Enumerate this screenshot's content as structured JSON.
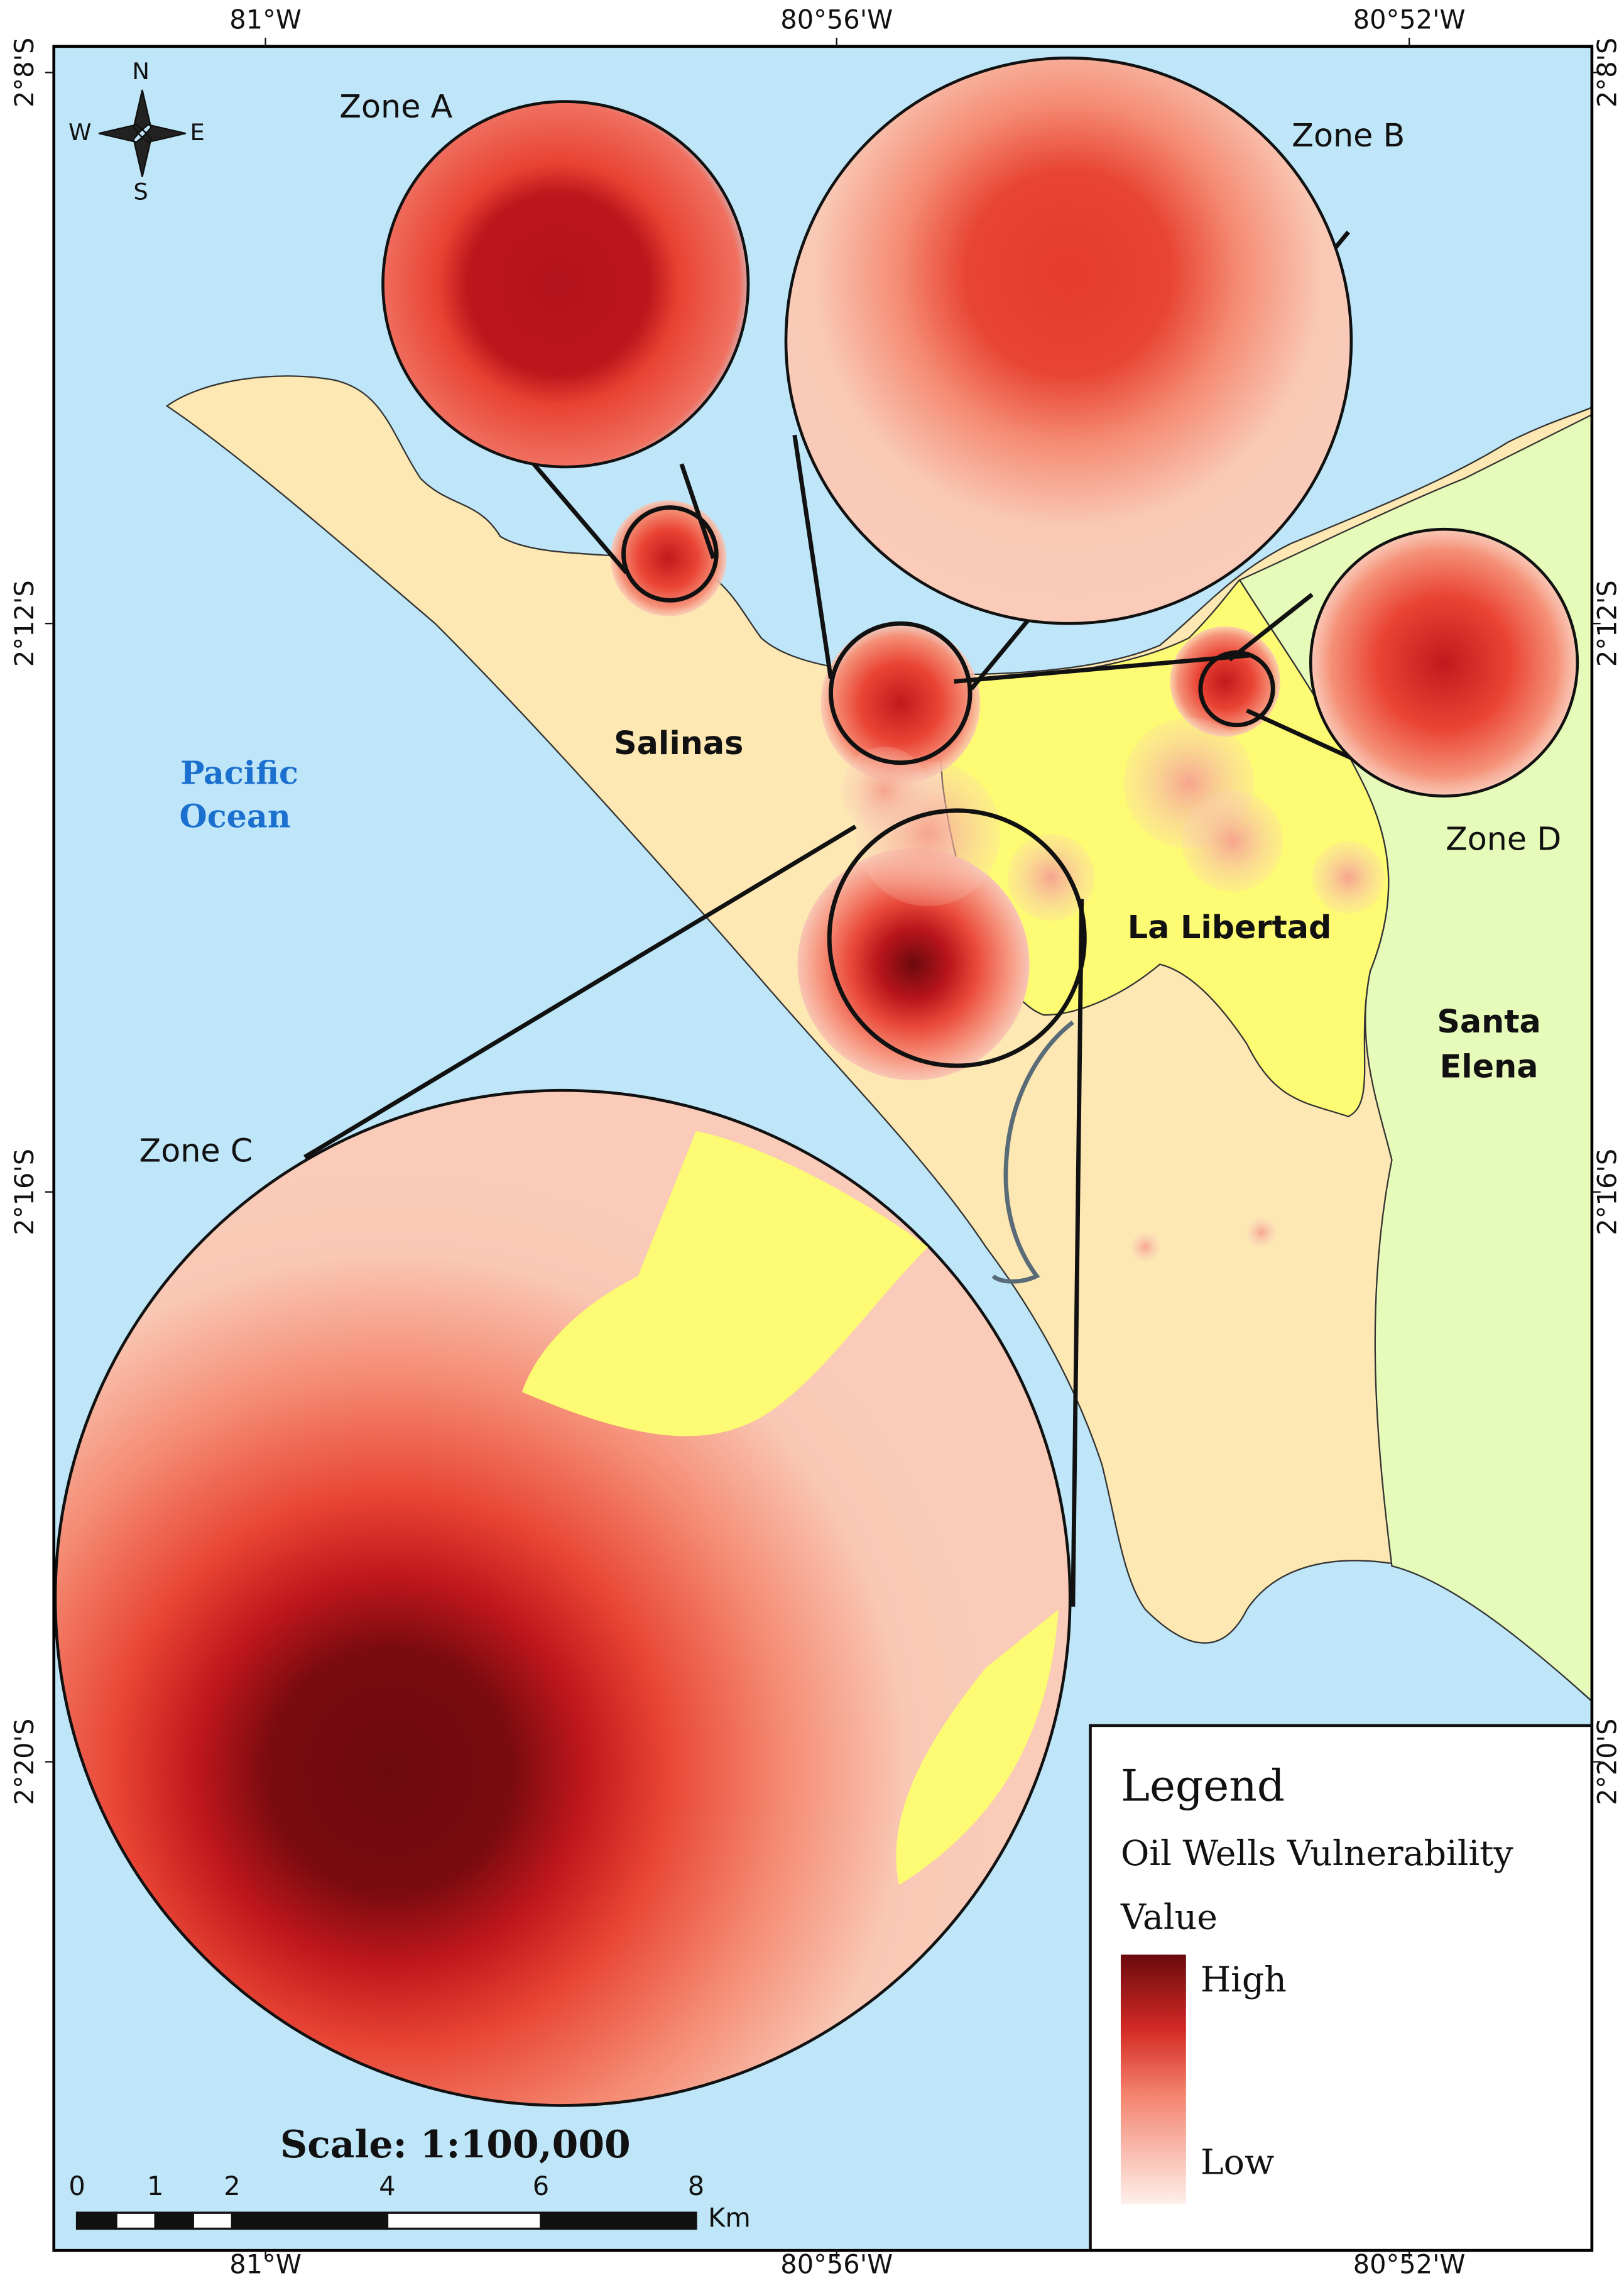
{
  "map": {
    "longitudes": [
      "81°W",
      "80°56'W",
      "80°52'W"
    ],
    "latitudes": [
      "2°8'S",
      "2°12'S",
      "2°16'S",
      "2°20'S"
    ],
    "compass": {
      "north": "N",
      "south": "S",
      "east": "E",
      "west": "W"
    },
    "zones": [
      "Zone A",
      "Zone B",
      "Zone C",
      "Zone D"
    ],
    "places": {
      "ocean": [
        "Pacific",
        "Ocean"
      ],
      "salinas": "Salinas",
      "la_libertad": "La Libertad",
      "santa_elena": [
        "Santa",
        "Elena"
      ]
    },
    "legend": {
      "title": "Legend",
      "layer": [
        "Oil Wells Vulnerability",
        "Value"
      ],
      "high": "High",
      "low": "Low"
    },
    "scale": {
      "title": "Scale: 1:100,000",
      "ticks": [
        "0",
        "1",
        "2",
        "4",
        "6",
        "8"
      ],
      "unit": "Km"
    }
  }
}
